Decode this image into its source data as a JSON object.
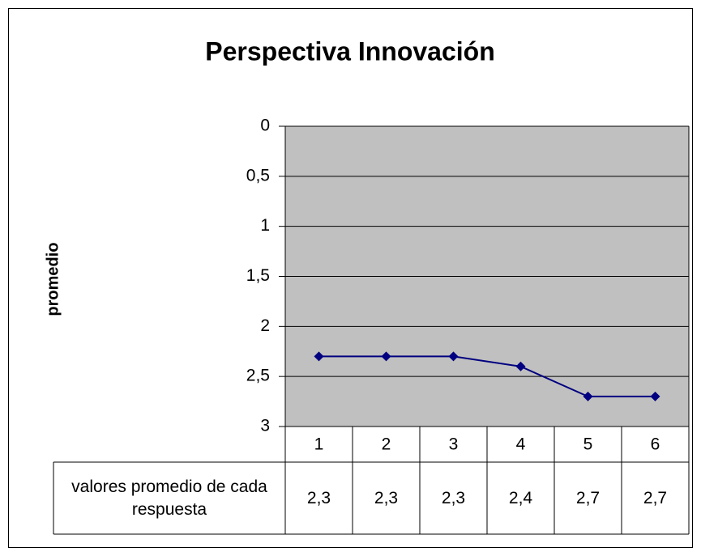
{
  "chart_data": {
    "type": "line",
    "title": "Perspectiva Innovación",
    "y_label": "promedio",
    "categories": [
      "1",
      "2",
      "3",
      "4",
      "5",
      "6"
    ],
    "series": [
      {
        "name": "valores promedio de cada respuesta",
        "color": "#000080",
        "values": [
          2.3,
          2.3,
          2.3,
          2.4,
          2.7,
          2.7
        ],
        "value_labels": [
          "2,3",
          "2,3",
          "2,3",
          "2,4",
          "2,7",
          "2,7"
        ]
      }
    ],
    "ylim": [
      3,
      0
    ],
    "yticks": [
      0,
      {
        "value": 0.5,
        "label": "0,5"
      },
      1,
      {
        "value": 1.5,
        "label": "1,5"
      },
      2,
      {
        "value": 2.5,
        "label": "2,5"
      },
      3
    ],
    "grid": true,
    "plot_background": "#c0c0c0",
    "data_table": true
  }
}
